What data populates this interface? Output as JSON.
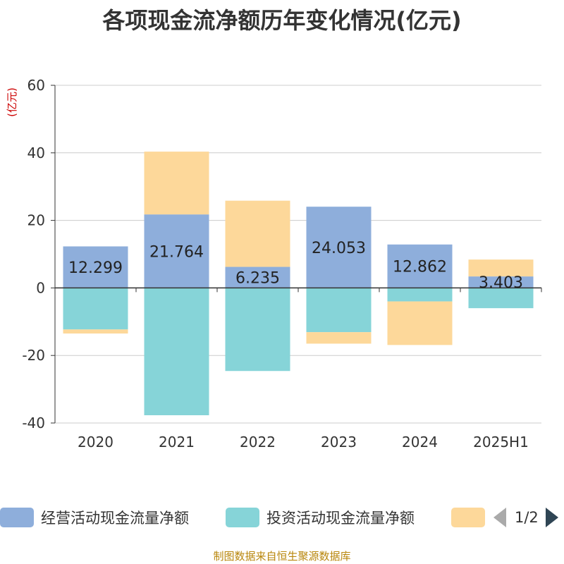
{
  "title": "各项现金流净额历年变化情况(亿元)",
  "footer": "制图数据来自恒生聚源数据库",
  "pager": {
    "text": "1/2"
  },
  "chart_data": {
    "type": "bar",
    "stacked": true,
    "title": "各项现金流净额历年变化情况(亿元)",
    "ylabel": "(亿元)",
    "xlabel": "",
    "ylim": [
      -40,
      60
    ],
    "yticks": [
      60,
      40,
      20,
      0,
      -20,
      -40
    ],
    "grid": true,
    "legend_position": "bottom",
    "categories": [
      "2020",
      "2021",
      "2022",
      "2023",
      "2024",
      "2025H1"
    ],
    "series": [
      {
        "name": "经营活动现金流量净额",
        "color": "#8eaedb",
        "values": [
          12.299,
          21.764,
          6.235,
          24.053,
          12.862,
          3.403
        ],
        "labels": [
          "12.299",
          "21.764",
          "6.235",
          "24.053",
          "12.862",
          "3.403"
        ]
      },
      {
        "name": "投资活动现金流量净额",
        "color": "#86d4d8",
        "values": [
          -12.3,
          -37.7,
          -24.6,
          -13.1,
          -4.0,
          -6.0
        ]
      },
      {
        "name": "",
        "color": "#fdd89a",
        "values": [
          -1.2,
          18.6,
          19.6,
          -3.4,
          -12.9,
          5.0
        ]
      }
    ]
  }
}
